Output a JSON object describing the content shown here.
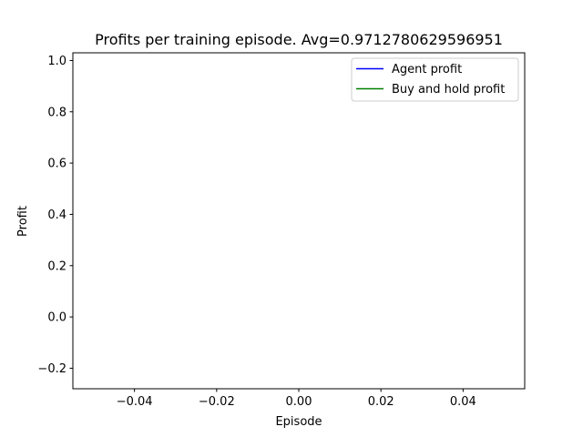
{
  "chart_data": {
    "type": "line",
    "title": "Profits per training episode. Avg=0.9712780629596951",
    "xlabel": "Episode",
    "ylabel": "Profit",
    "xlim": [
      -0.055,
      0.055
    ],
    "ylim": [
      -0.28,
      1.03
    ],
    "x_ticks": [
      -0.04,
      -0.02,
      0.0,
      0.02,
      0.04
    ],
    "x_tick_labels": [
      "−0.04",
      "−0.02",
      "0.00",
      "0.02",
      "0.04"
    ],
    "y_ticks": [
      -0.2,
      0.0,
      0.2,
      0.4,
      0.6,
      0.8,
      1.0
    ],
    "y_tick_labels": [
      "−0.2",
      "0.0",
      "0.2",
      "0.4",
      "0.6",
      "0.8",
      "1.0"
    ],
    "grid": false,
    "legend_position": "upper-right",
    "series": [
      {
        "name": "Agent profit",
        "color": "#0000ff",
        "x": [],
        "y": []
      },
      {
        "name": "Buy and hold profit",
        "color": "#008000",
        "x": [],
        "y": []
      }
    ]
  }
}
